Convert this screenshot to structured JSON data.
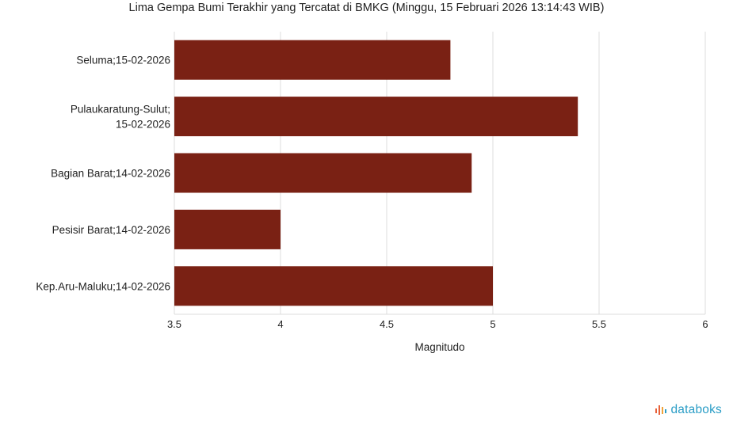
{
  "chart_data": {
    "type": "bar",
    "orientation": "horizontal",
    "title": "Lima Gempa Bumi Terakhir yang Tercatat di BMKG (Minggu, 15 Februari 2026 13:14:43 WIB)",
    "categories": [
      [
        "Seluma;15-02-2026"
      ],
      [
        "Pulaukaratung-Sulut;",
        "15-02-2026"
      ],
      [
        "Bagian Barat;14-02-2026"
      ],
      [
        "Pesisir Barat;14-02-2026"
      ],
      [
        "Kep.Aru-Maluku;14-02-2026"
      ]
    ],
    "values": [
      4.8,
      5.4,
      4.9,
      4.0,
      5.0
    ],
    "xlabel": "Magnitudo",
    "ylabel": "",
    "xlim": [
      3.5,
      6
    ],
    "xticks": [
      "3.5",
      "4",
      "4.5",
      "5",
      "5.5",
      "6"
    ],
    "grid": true,
    "bar_color": "#7a2114"
  },
  "brand": {
    "name": "databoks",
    "color": "#2a9dc6",
    "icon": "databoks-bars-icon"
  }
}
